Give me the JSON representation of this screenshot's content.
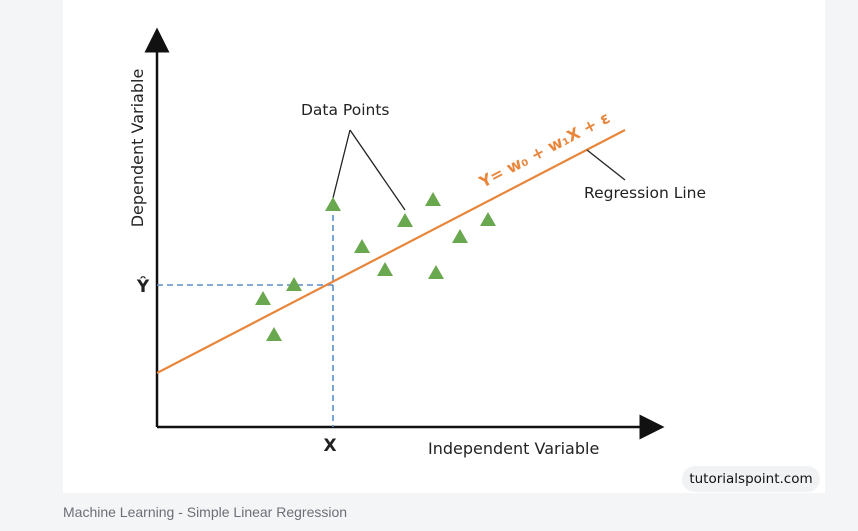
{
  "diagram": {
    "y_axis_label": "Dependent Variable",
    "x_axis_label": "Independent Variable",
    "x_marker": "X",
    "y_marker": "Ŷ",
    "data_points_label": "Data Points",
    "regression_line_label": "Regression Line",
    "equation": "Y= w₀ + w₁X + ε",
    "colors": {
      "points": "#6aa84f",
      "regression_line": "#e8863c",
      "guide_lines": "#5b8fc6",
      "axes": "#111111"
    }
  },
  "watermark": "tutorialspoint.com",
  "caption": "Machine Learning - Simple Linear Regression"
}
